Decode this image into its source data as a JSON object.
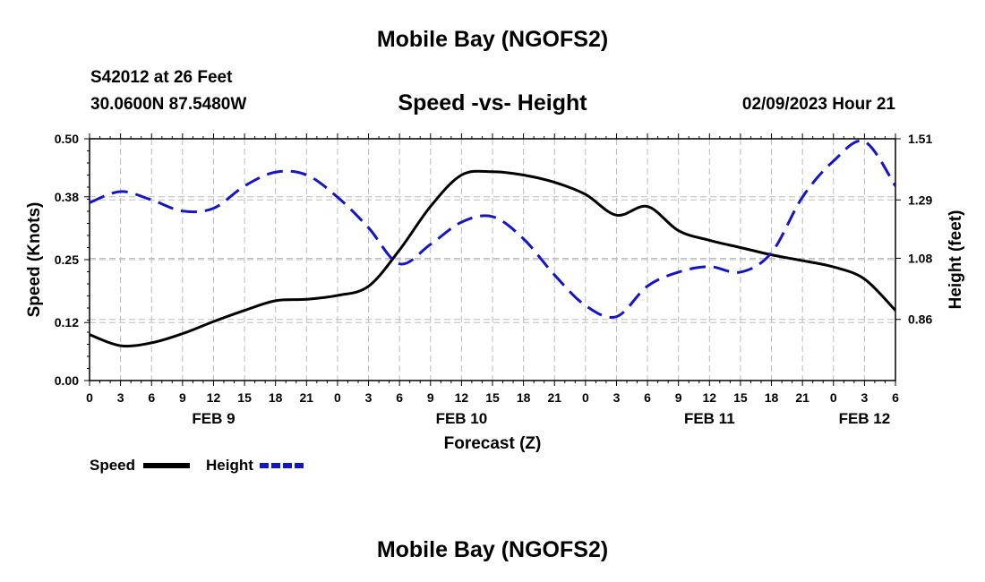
{
  "header": {
    "title": "Mobile Bay (NGOFS2)",
    "station_line": "S42012 at 26 Feet",
    "coords_line": "30.0600N  87.5480W",
    "chart_title": "Speed -vs- Height",
    "datetime": "02/09/2023 Hour 21"
  },
  "footer": {
    "title": "Mobile Bay (NGOFS2)"
  },
  "colors": {
    "speed": "#000000",
    "height": "#1414c8"
  },
  "chart_data": {
    "type": "line",
    "title": "Speed -vs- Height",
    "xlabel": "Forecast (Z)",
    "ylabel": "Speed (Knots)",
    "y2label": "Height (feet)",
    "xlim": [
      0,
      78
    ],
    "ylim": [
      0,
      0.5
    ],
    "y2lim": [
      0.64,
      1.51
    ],
    "x_ticks": [
      0,
      3,
      6,
      9,
      12,
      15,
      18,
      21,
      24,
      27,
      30,
      33,
      36,
      39,
      42,
      45,
      48,
      51,
      54,
      57,
      60,
      63,
      66,
      69,
      72,
      75,
      78
    ],
    "x_tick_labels": [
      "0",
      "3",
      "6",
      "9",
      "12",
      "15",
      "18",
      "21",
      "0",
      "3",
      "6",
      "9",
      "12",
      "15",
      "18",
      "21",
      "0",
      "3",
      "6",
      "9",
      "12",
      "15",
      "18",
      "21",
      "0",
      "3",
      "6"
    ],
    "date_labels": [
      {
        "x": 12,
        "label": "FEB 9"
      },
      {
        "x": 36,
        "label": "FEB 10"
      },
      {
        "x": 60,
        "label": "FEB 11"
      },
      {
        "x": 75,
        "label": "FEB 12"
      }
    ],
    "y_ticks": [
      0.0,
      0.12,
      0.25,
      0.38,
      0.5
    ],
    "y_tick_labels": [
      "0.00",
      "0.12",
      "0.25",
      "0.38",
      "0.50"
    ],
    "y2_ticks": [
      0.86,
      1.08,
      1.29,
      1.51
    ],
    "y2_tick_labels": [
      "0.86",
      "1.08",
      "1.29",
      "1.51"
    ],
    "grid": true,
    "legend_position": "bottom-left",
    "series": [
      {
        "name": "Speed",
        "axis": "left",
        "style": "solid",
        "x": [
          0,
          3,
          6,
          9,
          12,
          15,
          18,
          21,
          24,
          27,
          30,
          33,
          36,
          39,
          42,
          45,
          48,
          51,
          54,
          57,
          60,
          63,
          66,
          69,
          72,
          75,
          78
        ],
        "values": [
          0.095,
          0.072,
          0.078,
          0.097,
          0.122,
          0.145,
          0.165,
          0.168,
          0.176,
          0.195,
          0.27,
          0.36,
          0.425,
          0.432,
          0.425,
          0.41,
          0.385,
          0.342,
          0.36,
          0.31,
          0.29,
          0.275,
          0.26,
          0.248,
          0.235,
          0.21,
          0.145
        ]
      },
      {
        "name": "Height",
        "axis": "right",
        "style": "dashed",
        "x": [
          0,
          3,
          6,
          9,
          12,
          15,
          18,
          21,
          24,
          27,
          30,
          33,
          36,
          39,
          42,
          45,
          48,
          51,
          54,
          57,
          60,
          63,
          66,
          69,
          72,
          75,
          78
        ],
        "values": [
          1.28,
          1.32,
          1.29,
          1.25,
          1.26,
          1.34,
          1.39,
          1.38,
          1.3,
          1.19,
          1.06,
          1.13,
          1.21,
          1.23,
          1.15,
          1.02,
          0.91,
          0.87,
          0.98,
          1.03,
          1.05,
          1.03,
          1.1,
          1.3,
          1.43,
          1.5,
          1.34
        ]
      }
    ]
  }
}
